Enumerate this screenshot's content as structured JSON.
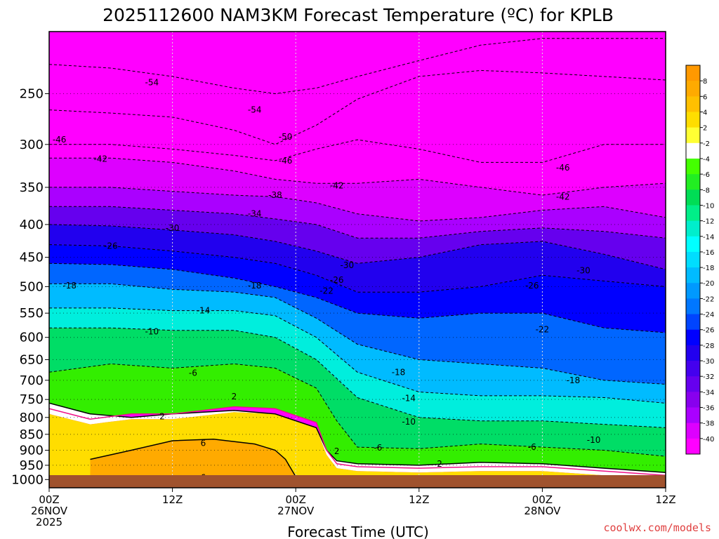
{
  "chart_data": {
    "type": "heatmap",
    "title": "2025112600 NAM3KM Forecast Temperature (ºC) for KPLB",
    "xlabel": "Forecast Time (UTC)",
    "ylabel": "",
    "credit": "coolwx.com/models",
    "x_ticks": [
      {
        "hour": 0,
        "lines": [
          "00Z",
          "26NOV",
          "2025"
        ]
      },
      {
        "hour": 12,
        "lines": [
          "12Z"
        ]
      },
      {
        "hour": 24,
        "lines": [
          "00Z",
          "27NOV"
        ]
      },
      {
        "hour": 36,
        "lines": [
          "12Z"
        ]
      },
      {
        "hour": 48,
        "lines": [
          "00Z",
          "28NOV"
        ]
      },
      {
        "hour": 60,
        "lines": [
          "12Z"
        ]
      }
    ],
    "xlim": [
      0,
      60
    ],
    "y_ticks": [
      250,
      300,
      350,
      400,
      450,
      500,
      550,
      600,
      650,
      700,
      750,
      800,
      850,
      900,
      950,
      1000
    ],
    "ylim": [
      200,
      1030
    ],
    "y_scale": "log",
    "grid": true,
    "legend": "right",
    "colorbar": {
      "labels": [
        "8",
        "6",
        "4",
        "2",
        "-2",
        "-4",
        "-6",
        "-8",
        "-10",
        "-12",
        "-14",
        "-16",
        "-18",
        "-20",
        "-22",
        "-24",
        "-26",
        "-28",
        "-30",
        "-32",
        "-34",
        "-36",
        "-38",
        "-40"
      ],
      "colors": [
        "#ff9900",
        "#ffaa00",
        "#ffc000",
        "#ffdd00",
        "#ffff33",
        "#ffffff",
        "#44ff00",
        "#22ee22",
        "#00dd55",
        "#00ee88",
        "#00eecc",
        "#00ffff",
        "#00ddff",
        "#00bbff",
        "#0099ff",
        "#0077ff",
        "#0044ff",
        "#0000ff",
        "#2200ee",
        "#4400ee",
        "#6600ee",
        "#8800ee",
        "#aa00ff",
        "#dd00ff",
        "#ff00ff"
      ]
    },
    "isotherms": [
      {
        "value": -54,
        "label": "-54",
        "x": [
          0,
          6,
          12,
          18,
          22,
          26,
          30,
          36,
          42,
          48,
          54,
          60
        ],
        "y": [
          225,
          228,
          235,
          245,
          250,
          245,
          235,
          222,
          210,
          205,
          205,
          205
        ]
      },
      {
        "value": -50,
        "label": "-50",
        "x": [
          0,
          6,
          12,
          18,
          22,
          26,
          30,
          36,
          42,
          48,
          54,
          60
        ],
        "y": [
          265,
          268,
          272,
          285,
          300,
          280,
          255,
          235,
          230,
          232,
          235,
          238
        ]
      },
      {
        "value": -46,
        "label": "-46",
        "x": [
          0,
          6,
          12,
          18,
          22,
          26,
          30,
          36,
          42,
          48,
          54,
          60
        ],
        "y": [
          300,
          300,
          305,
          312,
          318,
          305,
          295,
          305,
          320,
          320,
          300,
          300
        ]
      },
      {
        "value": -42,
        "label": "-42",
        "x": [
          0,
          6,
          12,
          18,
          22,
          26,
          30,
          36,
          42,
          48,
          54,
          60
        ],
        "y": [
          315,
          315,
          320,
          330,
          340,
          345,
          345,
          340,
          350,
          360,
          350,
          345
        ]
      },
      {
        "value": -38,
        "label": "-38",
        "x": [
          0,
          6,
          12,
          18,
          22,
          26,
          30,
          36,
          42,
          48,
          54,
          60
        ],
        "y": [
          350,
          350,
          355,
          360,
          362,
          370,
          385,
          395,
          390,
          380,
          375,
          390
        ]
      },
      {
        "value": -34,
        "label": "-34",
        "x": [
          0,
          6,
          12,
          18,
          22,
          26,
          30,
          36,
          42,
          48,
          54,
          60
        ],
        "y": [
          375,
          375,
          380,
          385,
          392,
          400,
          420,
          420,
          410,
          405,
          410,
          420
        ]
      },
      {
        "value": -30,
        "label": "-30",
        "x": [
          0,
          6,
          12,
          18,
          22,
          26,
          30,
          36,
          42,
          48,
          54,
          60
        ],
        "y": [
          400,
          402,
          408,
          415,
          425,
          440,
          460,
          450,
          430,
          425,
          445,
          470
        ]
      },
      {
        "value": -26,
        "label": "-26",
        "x": [
          0,
          6,
          12,
          18,
          22,
          26,
          30,
          36,
          42,
          48,
          54,
          60
        ],
        "y": [
          430,
          432,
          440,
          450,
          460,
          480,
          510,
          510,
          500,
          480,
          490,
          500
        ]
      },
      {
        "value": -22,
        "label": "-22",
        "x": [
          0,
          6,
          12,
          18,
          22,
          26,
          30,
          36,
          42,
          48,
          54,
          60
        ],
        "y": [
          460,
          462,
          470,
          485,
          500,
          520,
          550,
          560,
          550,
          550,
          580,
          590
        ]
      },
      {
        "value": -18,
        "label": "-18",
        "x": [
          0,
          6,
          12,
          18,
          22,
          26,
          30,
          36,
          42,
          48,
          54,
          60
        ],
        "y": [
          495,
          495,
          505,
          510,
          520,
          560,
          615,
          650,
          660,
          670,
          700,
          710
        ]
      },
      {
        "value": -14,
        "label": "-14",
        "x": [
          0,
          6,
          12,
          18,
          22,
          26,
          30,
          36,
          42,
          48,
          54,
          60
        ],
        "y": [
          540,
          540,
          545,
          545,
          555,
          600,
          680,
          730,
          740,
          740,
          745,
          760
        ]
      },
      {
        "value": -10,
        "label": "-10",
        "x": [
          0,
          6,
          12,
          18,
          22,
          26,
          30,
          36,
          42,
          48,
          54,
          60
        ],
        "y": [
          580,
          580,
          585,
          585,
          600,
          650,
          745,
          800,
          810,
          810,
          820,
          830
        ]
      },
      {
        "value": -6,
        "label": "-6",
        "x": [
          0,
          6,
          12,
          18,
          22,
          26,
          28,
          30,
          36,
          42,
          48,
          54,
          60
        ],
        "y": [
          680,
          660,
          670,
          660,
          670,
          720,
          810,
          890,
          895,
          880,
          890,
          900,
          920
        ]
      },
      {
        "value": 2,
        "label": "2",
        "x": [
          0,
          4,
          8,
          12,
          18,
          22,
          26,
          27,
          28,
          30,
          36,
          42,
          48,
          54,
          60
        ],
        "y": [
          760,
          790,
          800,
          790,
          780,
          790,
          830,
          900,
          935,
          945,
          950,
          940,
          945,
          960,
          975
        ]
      },
      {
        "value": 6,
        "label": "6",
        "x": [
          4,
          8,
          12,
          16,
          20,
          22,
          23,
          24
        ],
        "y": [
          930,
          900,
          870,
          865,
          880,
          900,
          930,
          990
        ]
      }
    ],
    "freezing_line": {
      "value": 0,
      "x": [
        0,
        4,
        8,
        12,
        18,
        22,
        26,
        27,
        28,
        30,
        36,
        42,
        48,
        54,
        60
      ],
      "y": [
        775,
        805,
        790,
        790,
        770,
        775,
        815,
        900,
        945,
        955,
        960,
        955,
        955,
        970,
        985
      ]
    },
    "label_positions": [
      {
        "label": "-54",
        "x": 10,
        "y": 240
      },
      {
        "label": "-54",
        "x": 20,
        "y": 265
      },
      {
        "label": "-50",
        "x": 23,
        "y": 292
      },
      {
        "label": "-46",
        "x": 1,
        "y": 295
      },
      {
        "label": "-46",
        "x": 23,
        "y": 318
      },
      {
        "label": "-42",
        "x": 5,
        "y": 316
      },
      {
        "label": "-42",
        "x": 28,
        "y": 348
      },
      {
        "label": "-46",
        "x": 50,
        "y": 326
      },
      {
        "label": "-42",
        "x": 50,
        "y": 362
      },
      {
        "label": "-38",
        "x": 22,
        "y": 360
      },
      {
        "label": "-34",
        "x": 20,
        "y": 385
      },
      {
        "label": "-30",
        "x": 12,
        "y": 405
      },
      {
        "label": "-30",
        "x": 52,
        "y": 472
      },
      {
        "label": "-30",
        "x": 29,
        "y": 463
      },
      {
        "label": "-26",
        "x": 6,
        "y": 432
      },
      {
        "label": "-26",
        "x": 28,
        "y": 488
      },
      {
        "label": "-26",
        "x": 47,
        "y": 498
      },
      {
        "label": "-22",
        "x": 27,
        "y": 508
      },
      {
        "label": "-22",
        "x": 48,
        "y": 583
      },
      {
        "label": "-18",
        "x": 2,
        "y": 498
      },
      {
        "label": "-18",
        "x": 20,
        "y": 498
      },
      {
        "label": "-18",
        "x": 34,
        "y": 680
      },
      {
        "label": "-18",
        "x": 51,
        "y": 700
      },
      {
        "label": "-14",
        "x": 15,
        "y": 545
      },
      {
        "label": "-14",
        "x": 35,
        "y": 747
      },
      {
        "label": "-10",
        "x": 10,
        "y": 588
      },
      {
        "label": "-10",
        "x": 35,
        "y": 813
      },
      {
        "label": "-10",
        "x": 53,
        "y": 868
      },
      {
        "label": "-6",
        "x": 14,
        "y": 682
      },
      {
        "label": "-6",
        "x": 32,
        "y": 892
      },
      {
        "label": "-6",
        "x": 47,
        "y": 890
      },
      {
        "label": "2",
        "x": 18,
        "y": 742
      },
      {
        "label": "2",
        "x": 11,
        "y": 797
      },
      {
        "label": "2",
        "x": 28,
        "y": 903
      },
      {
        "label": "2",
        "x": 38,
        "y": 945
      },
      {
        "label": "6",
        "x": 15,
        "y": 878
      },
      {
        "label": "6",
        "x": 15,
        "y": 993
      }
    ]
  }
}
